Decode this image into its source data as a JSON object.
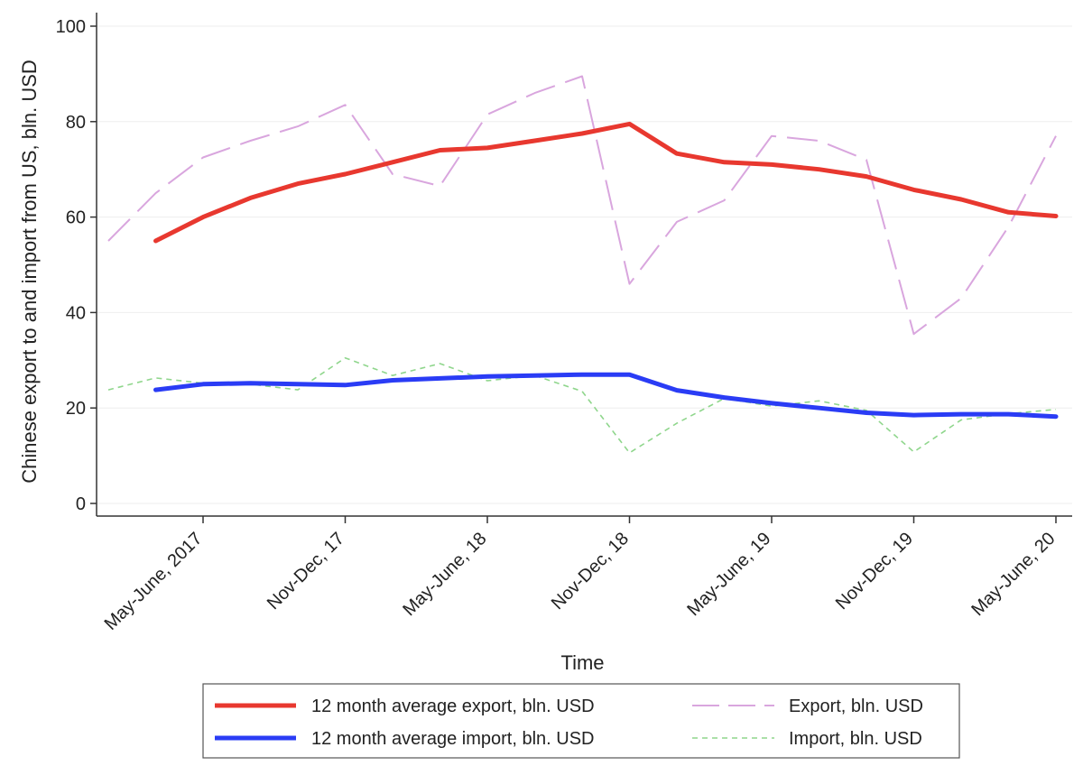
{
  "chart_data": {
    "type": "line",
    "title": "",
    "xlabel": "Time",
    "ylabel": "Chinese export to and import from US, bln. USD",
    "xlim": [
      0,
      20
    ],
    "ylim": [
      0,
      100
    ],
    "yticks": [
      0,
      20,
      40,
      60,
      80,
      100
    ],
    "yticklabels": [
      "0",
      "20",
      "40",
      "60",
      "80",
      "100"
    ],
    "xticks": [
      2,
      5,
      8,
      11,
      14,
      17,
      20
    ],
    "xticklabels": [
      "May-June, 2017",
      "Nov-Dec, 17",
      "May-June, 18",
      "Nov-Dec, 18",
      "May-June, 19",
      "Nov-Dec, 19",
      "May-June, 20"
    ],
    "grid": true,
    "legend_position": "bottom",
    "series": [
      {
        "name": "12 month average export, bln. USD",
        "color": "#e8382f",
        "style": "solid-thick",
        "x": [
          1,
          2,
          3,
          4,
          5,
          6,
          7,
          8,
          9,
          10,
          11,
          12,
          13,
          14,
          15,
          16,
          17,
          18,
          19,
          20
        ],
        "values": [
          55,
          60,
          64,
          67,
          69,
          71.5,
          74,
          74.5,
          76,
          77.5,
          79.5,
          73.3,
          71.5,
          71,
          70,
          68.5,
          65.7,
          63.7,
          61,
          60.2
        ]
      },
      {
        "name": "12 month average import, bln. USD",
        "color": "#2a3cf5",
        "style": "solid-thick",
        "x": [
          1,
          2,
          3,
          4,
          5,
          6,
          7,
          8,
          9,
          10,
          11,
          12,
          13,
          14,
          15,
          16,
          17,
          18,
          19,
          20
        ],
        "values": [
          23.8,
          25,
          25.2,
          25,
          24.8,
          25.8,
          26.2,
          26.6,
          26.8,
          27,
          27,
          23.7,
          22.2,
          21,
          20,
          19,
          18.5,
          18.7,
          18.7,
          18.2
        ]
      },
      {
        "name": "Export, bln. USD",
        "color": "#d9a6de",
        "style": "long-dash",
        "x": [
          0,
          1,
          2,
          3,
          4,
          5,
          6,
          7,
          8,
          9,
          10,
          11,
          12,
          13,
          14,
          15,
          16,
          17,
          18,
          19,
          20
        ],
        "values": [
          55,
          65,
          72.5,
          76,
          79,
          83.5,
          69,
          66.5,
          81.5,
          86,
          89.5,
          46,
          59,
          63.5,
          77,
          76,
          72,
          35.5,
          43,
          58,
          77
        ]
      },
      {
        "name": "Import, bln. USD",
        "color": "#8fd68c",
        "style": "short-dash",
        "x": [
          0,
          1,
          2,
          3,
          4,
          5,
          6,
          7,
          8,
          9,
          10,
          11,
          12,
          13,
          14,
          15,
          16,
          17,
          18,
          19,
          20
        ],
        "values": [
          23.8,
          26.3,
          25.2,
          25,
          23.8,
          30.5,
          26.8,
          29.3,
          25.7,
          26.8,
          23.5,
          10.6,
          16.8,
          22,
          20.4,
          21.5,
          19.5,
          10.8,
          17.5,
          18.8,
          19.7
        ]
      }
    ],
    "legend": [
      "12 month average export, bln. USD",
      "Export, bln. USD",
      "12 month average import, bln. USD",
      "Import, bln. USD"
    ]
  }
}
